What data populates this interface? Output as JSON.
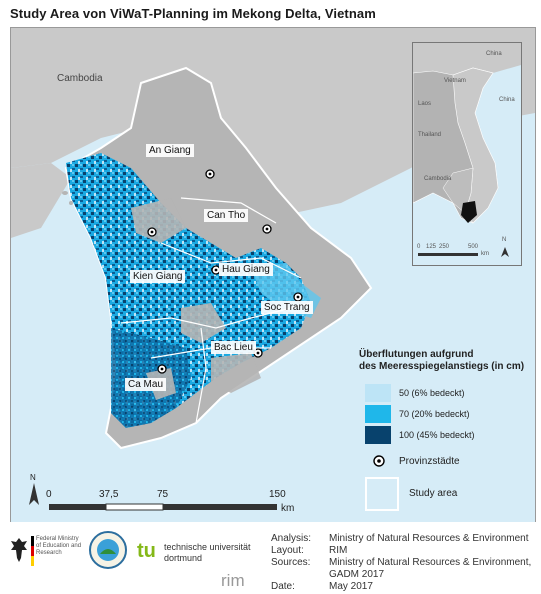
{
  "title": "Study Area von ViWaT-Planning im Mekong Delta, Vietnam",
  "map": {
    "countries": {
      "cambodia": "Cambodia"
    },
    "provinces": [
      "An Giang",
      "Can Tho",
      "Kien Giang",
      "Hau Giang",
      "Soc Trang",
      "Bac Lieu",
      "Ca Mau"
    ]
  },
  "inset": {
    "labels": {
      "china_top": "China",
      "vietnam": "Vietnam",
      "china_right": "China",
      "laos": "Laos",
      "thailand": "Thailand",
      "cambodia": "Cambodia"
    },
    "scale": {
      "t0": "0",
      "t1": "125",
      "t2": "250",
      "t3": "500",
      "unit": "km"
    },
    "north": "N"
  },
  "legend": {
    "title_line1": "Überflutungen aufgrund",
    "title_line2": "des Meeresspiegelanstiegs (in cm)",
    "classes": [
      {
        "label": "50  (6% bedeckt)",
        "color": "#bde4f6"
      },
      {
        "label": "70  (20% bedeckt)",
        "color": "#1fb7ea"
      },
      {
        "label": "100 (45% bedeckt)",
        "color": "#08426d"
      }
    ],
    "cities": "Provinzstädte",
    "study_area": "Study area"
  },
  "scalebar": {
    "t0": "0",
    "t1": "37,5",
    "t2": "75",
    "t3": "150",
    "unit": "km",
    "north": "N"
  },
  "footer": {
    "bmbf": "Federal Ministry of Education and Research",
    "viwat": "ViWaT MEKONG PLANNING",
    "tu_line1": "technische universität",
    "tu_line2": "dortmund",
    "rim": "rim",
    "analysis_key": "Analysis:",
    "analysis_val": "Ministry of Natural Resources & Environment",
    "layout_key": "Layout:",
    "layout_val": "RIM",
    "sources_key": "Sources:",
    "sources_val1": "Ministry of Natural Resources & Environment,",
    "sources_val2": "GADM 2017",
    "date_key": "Date:",
    "date_val": "May 2017"
  }
}
